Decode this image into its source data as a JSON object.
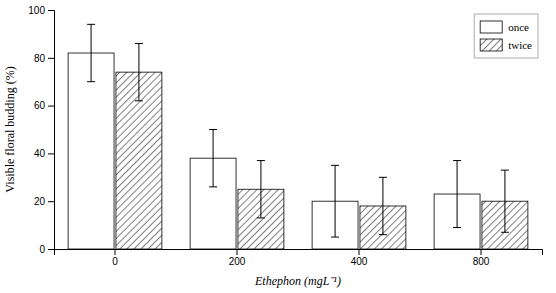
{
  "chart_data": {
    "type": "bar",
    "categories": [
      "0",
      "200",
      "400",
      "800"
    ],
    "series": [
      {
        "name": "once",
        "color": "white",
        "values": [
          82,
          38,
          20,
          23
        ],
        "errors": [
          12,
          12,
          15,
          14
        ]
      },
      {
        "name": "twice",
        "color": "white",
        "values": [
          74,
          25,
          18,
          20
        ],
        "errors": [
          12,
          12,
          12,
          13
        ]
      }
    ],
    "x_label": "Ethephon (mgL⁻¹)",
    "y_label": "Visible floral budding (%)",
    "ylim": [
      0,
      100
    ],
    "yticks": [
      0,
      20,
      40,
      60,
      80,
      100
    ],
    "legend": "upper-right",
    "grid": false
  }
}
